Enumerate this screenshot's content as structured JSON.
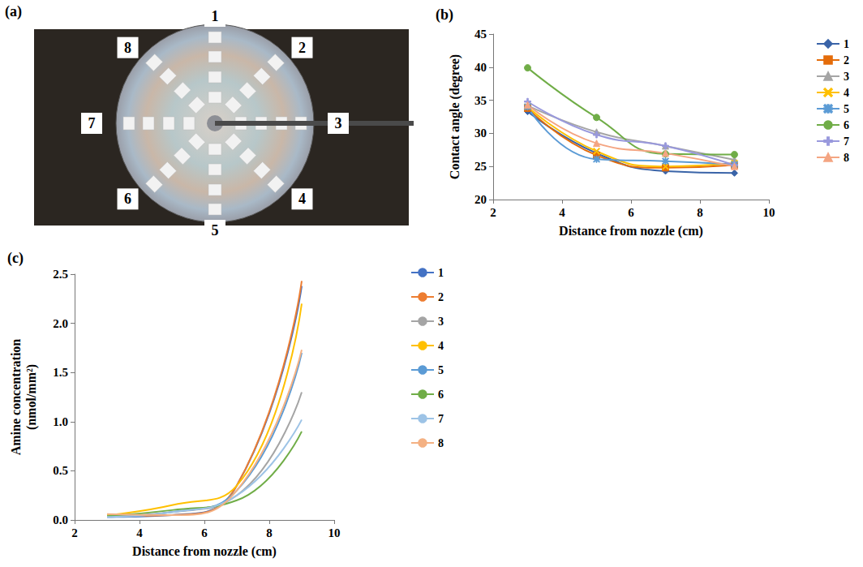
{
  "panel_a": {
    "panel": "(a)",
    "labels": [
      "1",
      "2",
      "3",
      "4",
      "5",
      "6",
      "7",
      "8"
    ]
  },
  "chart_data": [
    {
      "panel": "(b)",
      "type": "line",
      "x_label": "Distance from nozzle (cm)",
      "y_label": "Contact angle (degree)",
      "xlim": [
        2,
        10
      ],
      "xticks": [
        2,
        4,
        6,
        8,
        10
      ],
      "ylim": [
        20,
        45
      ],
      "yticks": [
        20,
        25,
        30,
        35,
        40,
        45
      ],
      "grid": false,
      "legend": "right",
      "x": [
        3,
        5,
        7,
        9
      ],
      "series": [
        {
          "name": "1",
          "color": "#3a64a8",
          "marker": "diamond",
          "values": [
            33.3,
            27.0,
            24.3,
            24.0
          ]
        },
        {
          "name": "2",
          "color": "#e46c0a",
          "marker": "square",
          "values": [
            33.8,
            26.7,
            24.8,
            25.2
          ]
        },
        {
          "name": "3",
          "color": "#a5a5a5",
          "marker": "triangle",
          "values": [
            34.2,
            30.2,
            28.1,
            26.0
          ]
        },
        {
          "name": "4",
          "color": "#ffc000",
          "marker": "x",
          "values": [
            34.0,
            27.3,
            25.0,
            25.5
          ]
        },
        {
          "name": "5",
          "color": "#5b9bd5",
          "marker": "asterisk",
          "values": [
            34.0,
            26.1,
            25.8,
            25.3
          ]
        },
        {
          "name": "6",
          "color": "#70ad47",
          "marker": "circle",
          "values": [
            39.9,
            32.4,
            26.9,
            26.8
          ]
        },
        {
          "name": "7",
          "color": "#9999dd",
          "marker": "plus",
          "values": [
            34.8,
            29.8,
            28.1,
            25.2
          ]
        },
        {
          "name": "8",
          "color": "#f4a582",
          "marker": "triangle",
          "values": [
            34.3,
            28.5,
            27.0,
            25.0
          ]
        }
      ]
    },
    {
      "panel": "(c)",
      "type": "line",
      "x_label": "Distance from nozzle (cm)",
      "y_label": "Amine concentration (nmol/mm²)",
      "xlim": [
        2,
        10
      ],
      "xticks": [
        2,
        4,
        6,
        8,
        10
      ],
      "ylim": [
        0,
        2.5
      ],
      "yticks": [
        {
          "value": 0,
          "label": "0.0"
        },
        0.5,
        {
          "value": 1,
          "label": "1.0"
        },
        1.5,
        {
          "value": 2,
          "label": "2.0"
        },
        2.5
      ],
      "grid": false,
      "legend": "right",
      "marker": "none",
      "x": [
        3,
        5,
        7,
        9
      ],
      "series": [
        {
          "name": "1",
          "color": "#4472c4",
          "values": [
            0.03,
            0.05,
            0.35,
            2.38
          ]
        },
        {
          "name": "2",
          "color": "#ed7d31",
          "values": [
            0.04,
            0.05,
            0.35,
            2.43
          ]
        },
        {
          "name": "3",
          "color": "#a5a5a5",
          "values": [
            0.04,
            0.08,
            0.25,
            1.3
          ]
        },
        {
          "name": "4",
          "color": "#ffc000",
          "values": [
            0.05,
            0.15,
            0.35,
            2.2
          ]
        },
        {
          "name": "5",
          "color": "#5b9bd5",
          "values": [
            0.03,
            0.08,
            0.3,
            1.7
          ]
        },
        {
          "name": "6",
          "color": "#70ad47",
          "values": [
            0.04,
            0.1,
            0.2,
            0.9
          ]
        },
        {
          "name": "7",
          "color": "#9dc3e6",
          "values": [
            0.03,
            0.08,
            0.25,
            1.02
          ]
        },
        {
          "name": "8",
          "color": "#f4b183",
          "values": [
            0.06,
            0.05,
            0.3,
            1.73
          ]
        }
      ]
    }
  ]
}
